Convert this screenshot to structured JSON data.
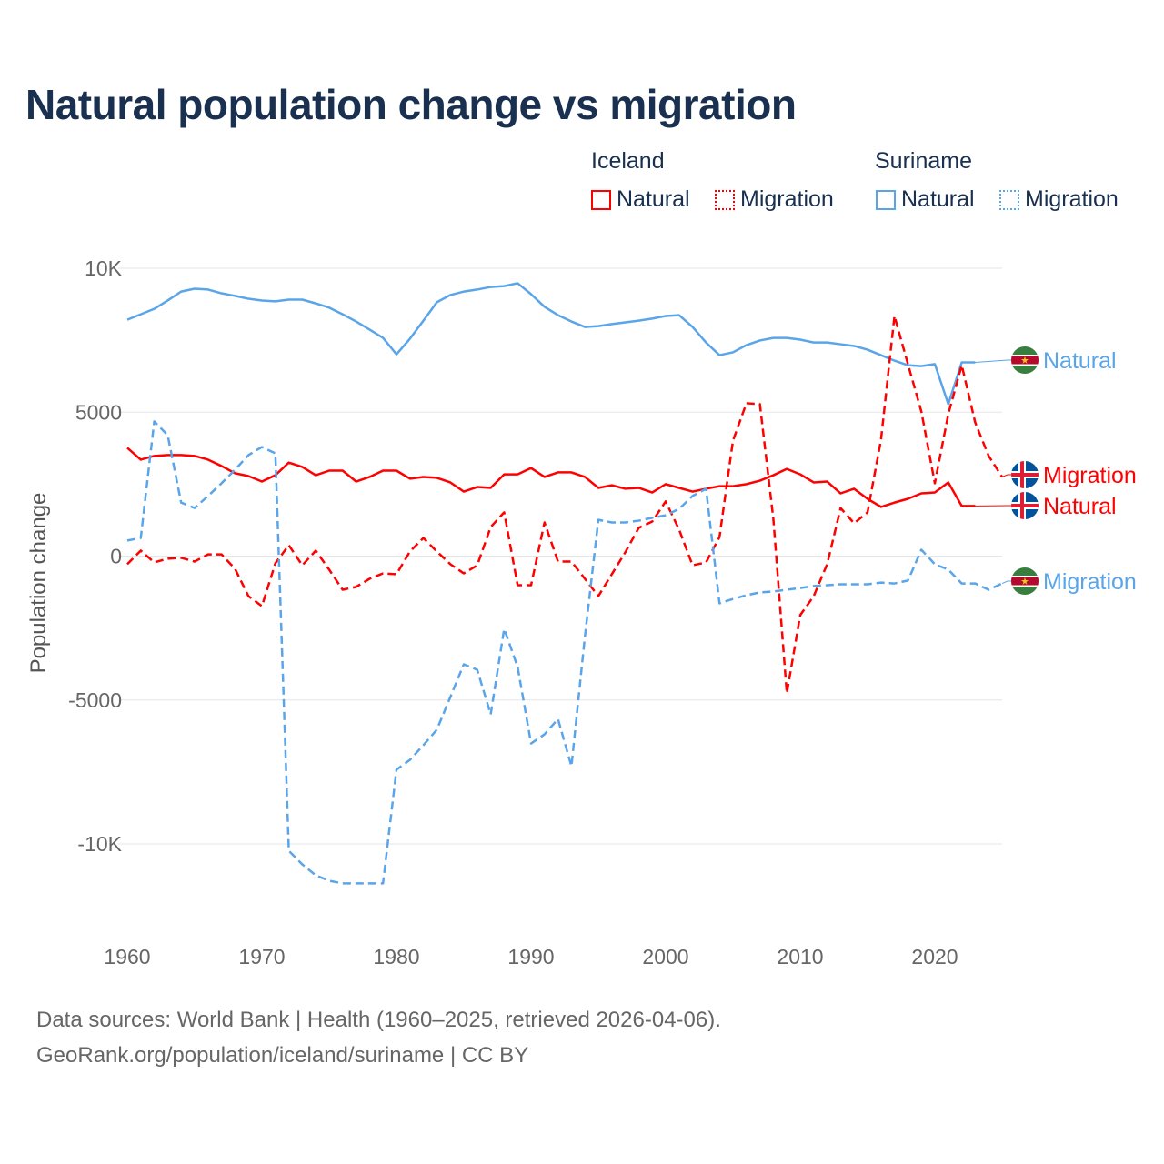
{
  "title": "Natural population change vs migration",
  "legend": {
    "groups": [
      {
        "name": "Iceland",
        "items": [
          {
            "label": "Natural",
            "style": "solid",
            "color": "#ff0000"
          },
          {
            "label": "Migration",
            "style": "dotted",
            "color": "#ff0000"
          }
        ]
      },
      {
        "name": "Suriname",
        "items": [
          {
            "label": "Natural",
            "style": "solid",
            "color": "#5aa5ea"
          },
          {
            "label": "Migration",
            "style": "dotted",
            "color": "#5aa5ea"
          }
        ]
      }
    ]
  },
  "footer": {
    "line1": "Data sources: World Bank | Health (1960–2025, retrieved 2026-04-06).",
    "line2": "GeoRank.org/population/iceland/suriname | CC BY"
  },
  "chart_data": {
    "type": "line",
    "title": "Natural population change vs migration",
    "xlabel": "",
    "ylabel": "Population change",
    "xlim": [
      1960,
      2025
    ],
    "ylim": [
      -10000,
      10000
    ],
    "xticks": [
      1960,
      1970,
      1980,
      1990,
      2000,
      2010,
      2020
    ],
    "xtick_labels": [
      "1960",
      "1970",
      "1980",
      "1990",
      "2000",
      "2010",
      "2020"
    ],
    "yticks": [
      10000,
      5000,
      0,
      -5000,
      -10000
    ],
    "ytick_labels": [
      "10K",
      "5000",
      "0",
      "-5000",
      "-10K"
    ],
    "grid": true,
    "series": [
      {
        "name": "Suriname Natural",
        "end_label": "Natural",
        "country": "Suriname",
        "color": "#5aa5ea",
        "dash": false,
        "start": 1960,
        "values": [
          8210,
          8400,
          8590,
          8880,
          9190,
          9290,
          9260,
          9130,
          9040,
          8940,
          8880,
          8850,
          8910,
          8910,
          8780,
          8630,
          8400,
          8150,
          7870,
          7580,
          7010,
          7550,
          8180,
          8820,
          9070,
          9190,
          9260,
          9350,
          9380,
          9480,
          9100,
          8660,
          8370,
          8150,
          7960,
          7990,
          8060,
          8120,
          8180,
          8250,
          8340,
          8370,
          7960,
          7420,
          6980,
          7080,
          7330,
          7490,
          7580,
          7580,
          7520,
          7420,
          7420,
          7360,
          7300,
          7170,
          6980,
          6790,
          6630,
          6600,
          6670,
          5280,
          6730,
          6730
        ]
      },
      {
        "name": "Iceland Migration",
        "end_label": "Migration",
        "country": "Iceland",
        "color": "#ff0000",
        "dash": true,
        "start": 1960,
        "values": [
          -280,
          190,
          -220,
          -90,
          -60,
          -190,
          60,
          60,
          -440,
          -1390,
          -1740,
          -250,
          380,
          -320,
          190,
          -470,
          -1170,
          -1070,
          -790,
          -600,
          -630,
          160,
          630,
          160,
          -280,
          -600,
          -320,
          1010,
          1520,
          -1010,
          -1010,
          1170,
          -190,
          -190,
          -790,
          -1390,
          -630,
          130,
          980,
          1200,
          1900,
          920,
          -320,
          -220,
          660,
          4010,
          5310,
          5280,
          1300,
          -4770,
          -2050,
          -1390,
          -280,
          1670,
          1140,
          1520,
          4040,
          8340,
          6670,
          5020,
          2530,
          4930,
          6630,
          4640,
          3480,
          2750
        ]
      },
      {
        "name": "Iceland Natural",
        "end_label": "Natural",
        "country": "Iceland",
        "color": "#ff0000",
        "dash": false,
        "start": 1960,
        "values": [
          3760,
          3350,
          3480,
          3510,
          3510,
          3480,
          3350,
          3130,
          2880,
          2780,
          2590,
          2810,
          3250,
          3100,
          2810,
          2970,
          2970,
          2590,
          2750,
          2970,
          2970,
          2690,
          2750,
          2720,
          2560,
          2240,
          2400,
          2370,
          2840,
          2840,
          3060,
          2750,
          2910,
          2910,
          2750,
          2370,
          2460,
          2340,
          2370,
          2210,
          2500,
          2370,
          2240,
          2340,
          2430,
          2430,
          2500,
          2620,
          2810,
          3030,
          2840,
          2560,
          2590,
          2180,
          2340,
          1990,
          1710,
          1860,
          1990,
          2180,
          2210,
          2560,
          1740,
          1740
        ]
      },
      {
        "name": "Suriname Migration",
        "end_label": "Migration",
        "country": "Suriname",
        "color": "#5aa5ea",
        "dash": true,
        "start": 1960,
        "values": [
          540,
          630,
          4680,
          4200,
          1860,
          1670,
          2090,
          2530,
          3000,
          3510,
          3790,
          3570,
          -10240,
          -10710,
          -11090,
          -11280,
          -11370,
          -11370,
          -11370,
          -11370,
          -7420,
          -7080,
          -6570,
          -6030,
          -4900,
          -3760,
          -3950,
          -5500,
          -2530,
          -3850,
          -6510,
          -6190,
          -5660,
          -7300,
          -2800,
          1260,
          1170,
          1170,
          1230,
          1330,
          1420,
          1640,
          2090,
          2340,
          -1640,
          -1490,
          -1360,
          -1260,
          -1230,
          -1170,
          -1110,
          -1040,
          -1010,
          -980,
          -980,
          -980,
          -920,
          -950,
          -850,
          220,
          -280,
          -470,
          -950,
          -950,
          -1170,
          -950
        ]
      }
    ]
  }
}
